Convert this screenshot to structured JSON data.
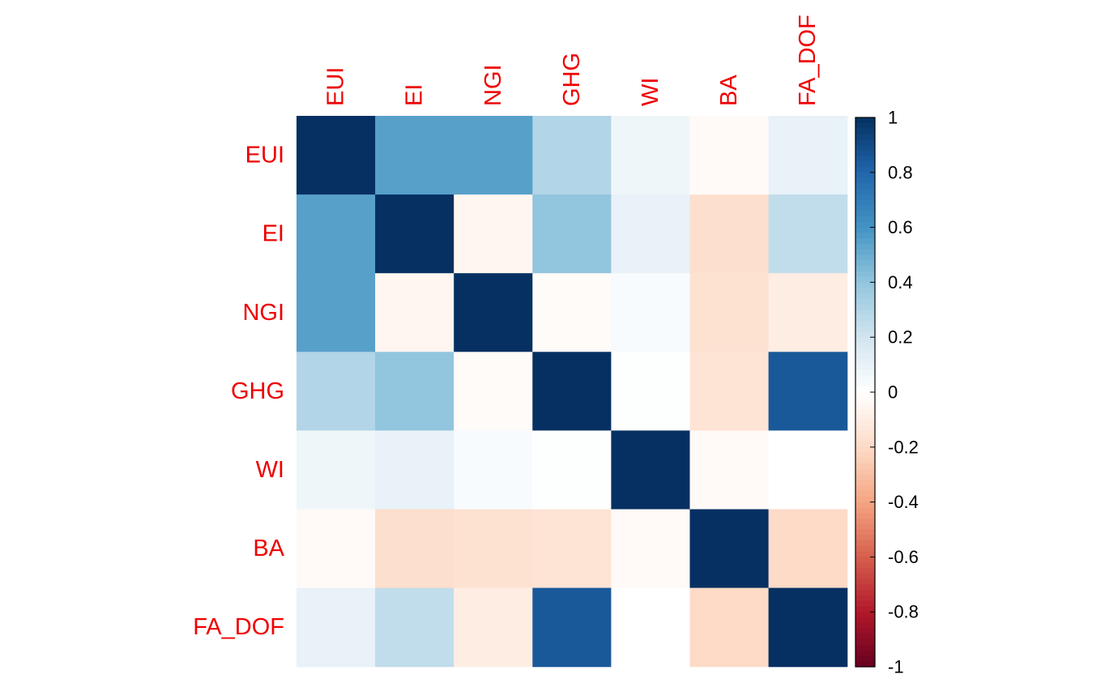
{
  "chart_data": {
    "type": "heatmap",
    "row_labels": [
      "EUI",
      "EI",
      "NGI",
      "GHG",
      "WI",
      "BA",
      "FA_DOF"
    ],
    "col_labels": [
      "EUI",
      "EI",
      "NGI",
      "GHG",
      "WI",
      "BA",
      "FA_DOF"
    ],
    "values": [
      [
        1.0,
        0.55,
        0.55,
        0.3,
        0.07,
        -0.03,
        0.1
      ],
      [
        0.55,
        1.0,
        -0.05,
        0.4,
        0.1,
        -0.18,
        0.25
      ],
      [
        0.55,
        -0.05,
        1.0,
        -0.02,
        0.03,
        -0.16,
        -0.1
      ],
      [
        0.3,
        0.4,
        -0.02,
        1.0,
        0.01,
        -0.15,
        0.85
      ],
      [
        0.07,
        0.1,
        0.03,
        0.01,
        1.0,
        -0.03,
        0.0
      ],
      [
        -0.03,
        -0.18,
        -0.16,
        -0.15,
        -0.03,
        1.0,
        -0.2
      ],
      [
        0.1,
        0.25,
        -0.1,
        0.85,
        0.0,
        -0.2,
        1.0
      ]
    ],
    "colorbar": {
      "range": [
        -1,
        1
      ],
      "ticks": [
        "1",
        "0.8",
        "0.6",
        "0.4",
        "0.2",
        "0",
        "-0.2",
        "-0.4",
        "-0.6",
        "-0.8",
        "-1"
      ]
    },
    "colors": {
      "label": "#ee0000",
      "negative_end": "#67001f",
      "neutral": "#ffffff",
      "positive_end": "#053061"
    }
  }
}
